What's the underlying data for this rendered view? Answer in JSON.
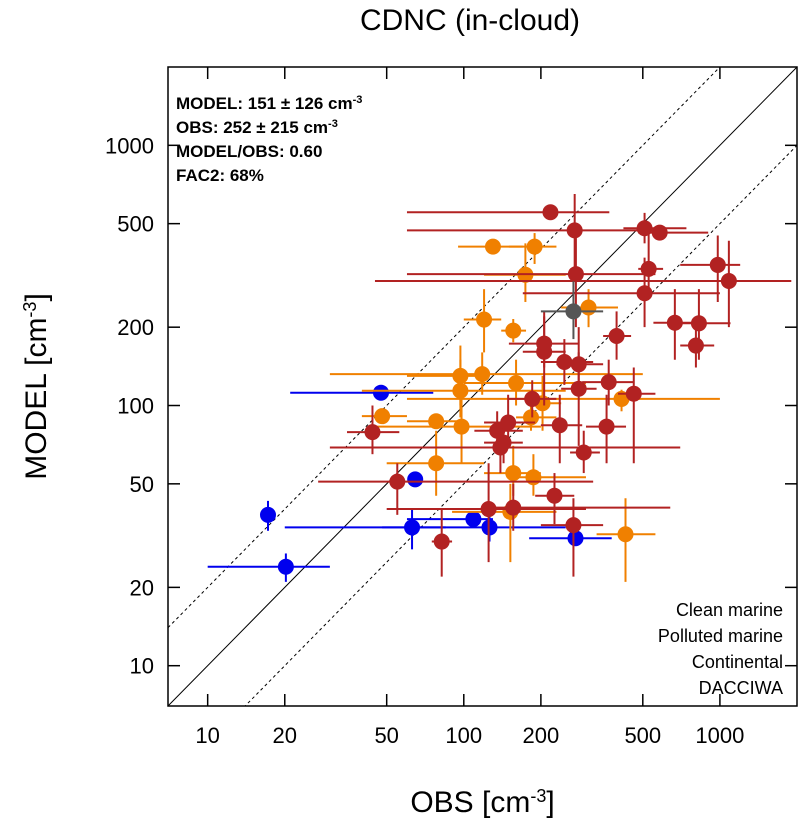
{
  "chart_data": {
    "type": "scatter",
    "title": "CDNC (in-cloud)",
    "x_label": {
      "text": "OBS [cm",
      "sup": "-3",
      "after": "]"
    },
    "y_label": {
      "text": "MODEL [cm",
      "sup": "-3",
      "after": "]"
    },
    "log_x": true,
    "log_y": true,
    "xlim": [
      7,
      2000
    ],
    "ylim": [
      7,
      2000
    ],
    "xticks": [
      10,
      20,
      50,
      100,
      200,
      500,
      1000
    ],
    "yticks": [
      10,
      20,
      50,
      100,
      200,
      500,
      1000
    ],
    "reference_lines": [
      {
        "factor": 1,
        "dashed": false
      },
      {
        "factor": 2,
        "dashed": true
      },
      {
        "factor": 0.5,
        "dashed": true
      }
    ],
    "stats": [
      {
        "text": "MODEL: 151 ± 126 cm",
        "sup": "-3"
      },
      {
        "text": "OBS: 252 ± 215 cm",
        "sup": "-3"
      },
      {
        "text": "MODEL/OBS: 0.60"
      },
      {
        "text": "FAC2: 68%"
      }
    ],
    "legend": "lower right",
    "series": [
      {
        "name": "Clean marine",
        "color": "#0000ee",
        "x": [
          17.2,
          20.2,
          47.5,
          62.8,
          64.6,
          109,
          126,
          273
        ],
        "y": [
          38,
          24,
          112,
          34,
          52,
          36.6,
          34,
          30.9
        ],
        "xrange": [
          null,
          [
            10,
            30
          ],
          [
            21,
            76
          ],
          [
            48,
            85
          ],
          null,
          [
            60,
            130
          ],
          [
            20,
            250
          ],
          [
            180,
            378
          ]
        ],
        "yrange": [
          [
            33,
            43
          ],
          [
            21,
            27
          ],
          null,
          [
            28,
            40
          ],
          null,
          null,
          [
            30,
            38
          ],
          null
        ]
      },
      {
        "name": "Polluted marine",
        "color": "#f08000",
        "x": [
          130,
          189,
          174,
          120,
          156,
          307,
          97,
          118,
          160,
          97,
          413,
          48,
          78,
          98,
          183,
          203,
          78,
          156,
          187,
          152,
          428
        ],
        "y": [
          408,
          408,
          318,
          214,
          194,
          238,
          130,
          132,
          122,
          114,
          106,
          91,
          87,
          83,
          90,
          102,
          60,
          55,
          53,
          39,
          32
        ],
        "xrange": [
          [
            95,
            170
          ],
          [
            150,
            230
          ],
          [
            120,
            250
          ],
          [
            100,
            140
          ],
          [
            140,
            175
          ],
          [
            240,
            400
          ],
          [
            60,
            120
          ],
          [
            30,
            500
          ],
          [
            100,
            300
          ],
          [
            40,
            250
          ],
          [
            60,
            1000
          ],
          [
            40,
            60
          ],
          [
            60,
            100
          ],
          [
            45,
            200
          ],
          [
            160,
            230
          ],
          [
            180,
            240
          ],
          [
            50,
            120
          ],
          [
            120,
            200
          ],
          [
            150,
            300
          ],
          [
            90,
            230
          ],
          [
            330,
            560
          ]
        ],
        "yrange": [
          null,
          [
            350,
            460
          ],
          [
            250,
            420
          ],
          [
            160,
            280
          ],
          [
            175,
            215
          ],
          [
            200,
            280
          ],
          [
            100,
            170
          ],
          [
            110,
            160
          ],
          [
            100,
            150
          ],
          [
            90,
            150
          ],
          [
            95,
            115
          ],
          null,
          null,
          [
            60,
            110
          ],
          [
            80,
            110
          ],
          [
            80,
            130
          ],
          [
            45,
            80
          ],
          [
            45,
            70
          ],
          [
            45,
            65
          ],
          [
            25,
            50
          ],
          [
            21,
            44
          ]
        ]
      },
      {
        "name": "Continental",
        "color": "#b22222",
        "x": [
          218,
          271,
          508,
          582,
          274,
          527,
          981,
          1084,
          508,
          667,
          828,
          806,
          395,
          206,
          206,
          247,
          281,
          281,
          368,
          461,
          185,
          361,
          237,
          135,
          149,
          143,
          139,
          44,
          294,
          55,
          226,
          125,
          156,
          268,
          82
        ],
        "y": [
          553,
          471,
          480,
          462,
          320,
          335,
          347,
          301,
          270,
          208,
          207,
          170,
          185,
          173,
          161,
          147,
          144,
          116,
          123,
          111,
          106,
          83,
          84,
          80,
          86,
          72,
          69,
          79,
          66,
          51,
          45,
          40,
          40.5,
          34.7,
          30
        ],
        "xrange": [
          [
            60,
            370
          ],
          [
            60,
            490
          ],
          [
            420,
            740
          ],
          [
            480,
            900
          ],
          [
            60,
            560
          ],
          [
            480,
            600
          ],
          [
            700,
            1200
          ],
          [
            45,
            1900
          ],
          [
            170,
            1000
          ],
          [
            550,
            800
          ],
          [
            680,
            1100
          ],
          [
            700,
            950
          ],
          [
            350,
            450
          ],
          [
            150,
            280
          ],
          [
            170,
            250
          ],
          [
            200,
            320
          ],
          [
            230,
            350
          ],
          [
            240,
            330
          ],
          [
            290,
            460
          ],
          [
            400,
            560
          ],
          [
            150,
            230
          ],
          [
            300,
            430
          ],
          [
            200,
            290
          ],
          [
            110,
            170
          ],
          [
            120,
            190
          ],
          [
            120,
            170
          ],
          [
            30,
            700
          ],
          [
            35,
            56
          ],
          [
            260,
            340
          ],
          [
            27,
            320
          ],
          [
            190,
            270
          ],
          [
            50,
            300
          ],
          [
            120,
            640
          ],
          [
            200,
            350
          ],
          [
            75,
            90
          ]
        ],
        "yrange": [
          null,
          [
            300,
            650
          ],
          [
            420,
            550
          ],
          null,
          [
            200,
            470
          ],
          [
            270,
            480
          ],
          [
            250,
            450
          ],
          [
            200,
            430
          ],
          [
            200,
            370
          ],
          [
            150,
            280
          ],
          [
            150,
            280
          ],
          [
            140,
            210
          ],
          [
            150,
            230
          ],
          [
            140,
            220
          ],
          [
            100,
            230
          ],
          [
            120,
            180
          ],
          [
            110,
            200
          ],
          [
            70,
            160
          ],
          [
            100,
            150
          ],
          [
            60,
            140
          ],
          [
            90,
            125
          ],
          [
            60,
            110
          ],
          [
            60,
            110
          ],
          [
            65,
            95
          ],
          [
            70,
            110
          ],
          [
            60,
            90
          ],
          [
            55,
            85
          ],
          [
            65,
            100
          ],
          [
            55,
            80
          ],
          [
            38,
            60
          ],
          [
            35,
            55
          ],
          [
            25,
            60
          ],
          [
            33,
            50
          ],
          [
            22,
            44
          ],
          [
            22,
            40
          ]
        ]
      },
      {
        "name": "DACCIWA",
        "color": "#555555",
        "x": [
          268
        ],
        "y": [
          230
        ],
        "xrange": [
          [
            200,
            350
          ]
        ],
        "yrange": [
          [
            180,
            300
          ]
        ]
      }
    ]
  }
}
